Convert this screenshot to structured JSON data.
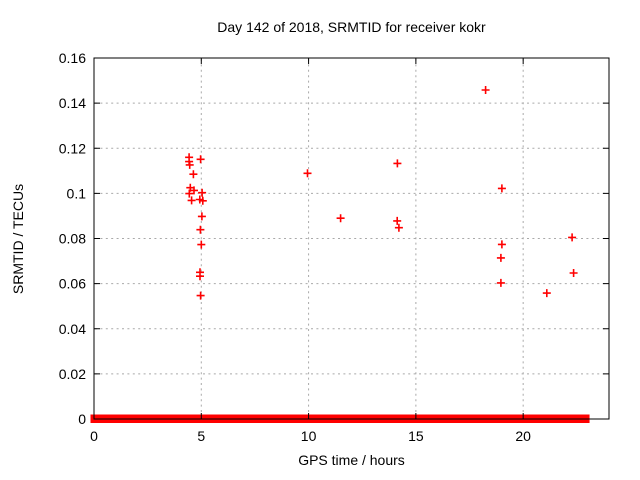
{
  "chart_data": {
    "type": "scatter",
    "title": "Day 142 of 2018, SRMTID for receiver kokr",
    "xlabel": "GPS time / hours",
    "ylabel": "SRMTID / TECUs",
    "xlim": [
      0,
      24
    ],
    "ylim": [
      0,
      0.16
    ],
    "grid": "dotted",
    "legend": "none",
    "marker": "plus",
    "colors": {
      "marker": "#ff0000",
      "grid": "#a9a9a9",
      "axis": "#000000",
      "background": "#ffffff"
    },
    "xticks": {
      "values": [
        0,
        5,
        10,
        15,
        20
      ],
      "labels": [
        "0",
        "5",
        "10",
        "15",
        "20"
      ]
    },
    "yticks": {
      "values": [
        0,
        0.02,
        0.04,
        0.06,
        0.08,
        0.1,
        0.12,
        0.14,
        0.16
      ],
      "labels": [
        "0",
        "0.02",
        "0.04",
        "0.06",
        "0.08",
        "0.1",
        "0.12",
        "0.14",
        "0.16"
      ]
    },
    "points": [
      [
        4.43,
        0.116
      ],
      [
        4.43,
        0.1141
      ],
      [
        4.46,
        0.1126
      ],
      [
        4.97,
        0.1151
      ],
      [
        4.63,
        0.1085
      ],
      [
        4.49,
        0.1025
      ],
      [
        4.66,
        0.1013
      ],
      [
        4.44,
        0.0999
      ],
      [
        5.04,
        0.1003
      ],
      [
        4.55,
        0.0969
      ],
      [
        4.93,
        0.0973
      ],
      [
        5.07,
        0.0967
      ],
      [
        5.03,
        0.0898
      ],
      [
        4.96,
        0.0839
      ],
      [
        5.0,
        0.0773
      ],
      [
        4.94,
        0.065
      ],
      [
        4.94,
        0.0633
      ],
      [
        4.97,
        0.0547
      ],
      [
        9.95,
        0.1089
      ],
      [
        11.49,
        0.089
      ],
      [
        14.14,
        0.1133
      ],
      [
        14.13,
        0.0878
      ],
      [
        14.21,
        0.0848
      ],
      [
        18.25,
        0.1458
      ],
      [
        19.01,
        0.1022
      ],
      [
        19.01,
        0.0774
      ],
      [
        18.96,
        0.0714
      ],
      [
        18.96,
        0.0603
      ],
      [
        21.1,
        0.0558
      ],
      [
        22.28,
        0.0805
      ],
      [
        22.35,
        0.0647
      ]
    ],
    "zero_band_segments": [
      [
        0.0,
        0.2
      ],
      [
        0.32,
        0.48
      ],
      [
        0.6,
        0.77
      ],
      [
        0.97,
        1.25
      ],
      [
        1.36,
        1.57
      ],
      [
        1.69,
        1.86
      ],
      [
        1.94,
        2.14
      ],
      [
        2.19,
        2.47
      ],
      [
        2.56,
        2.84
      ],
      [
        2.93,
        3.58
      ],
      [
        3.68,
        4.0
      ],
      [
        4.09,
        4.15
      ],
      [
        4.24,
        5.69
      ],
      [
        5.78,
        7.36
      ],
      [
        7.46,
        8.53
      ],
      [
        8.62,
        8.81
      ],
      [
        8.9,
        8.99
      ],
      [
        9.04,
        13.93
      ],
      [
        14.03,
        17.29
      ],
      [
        17.38,
        21.72
      ],
      [
        21.81,
        22.46
      ],
      [
        22.6,
        22.93
      ]
    ]
  }
}
